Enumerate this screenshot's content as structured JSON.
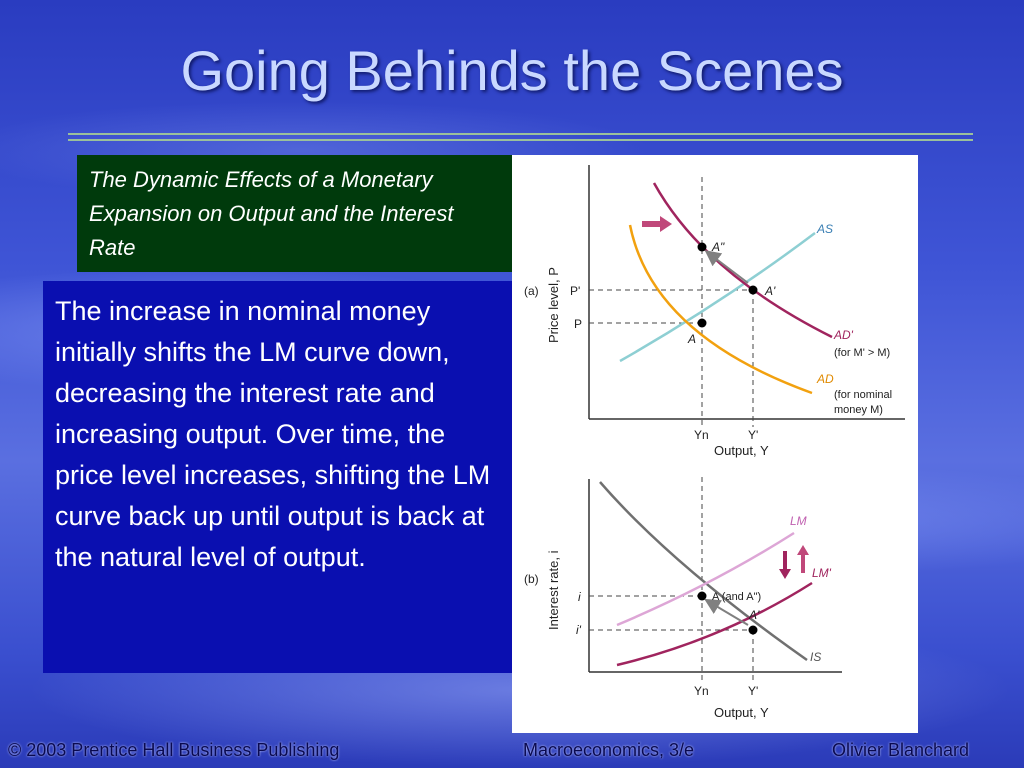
{
  "slide": {
    "title": "Going Behinds the Scenes",
    "caption": "The Dynamic Effects of a Monetary Expansion on Output and the Interest Rate",
    "body": "The increase in nominal money initially shifts the LM curve down, decreasing the interest rate and increasing output.  Over time, the price level increases, shifting the LM curve back up until output is back at the natural level of output."
  },
  "panel_a": {
    "tag": "(a)",
    "y_axis_label": "Price level, P",
    "x_axis_label": "Output, Y",
    "x_ticks": [
      "Yn",
      "Y'"
    ],
    "y_ticks": [
      "P'",
      "P"
    ],
    "curve_as": "AS",
    "curve_ad_prime": "AD'",
    "curve_ad_prime_note": "(for M' > M)",
    "curve_ad": "AD",
    "curve_ad_note_1": "(for nominal",
    "curve_ad_note_2": "money M)",
    "point_a": "A",
    "point_a_prime": "A'",
    "point_a_double": "A\""
  },
  "panel_b": {
    "tag": "(b)",
    "y_axis_label": "Interest rate, i",
    "x_axis_label": "Output, Y",
    "x_ticks": [
      "Yn",
      "Y'"
    ],
    "y_ticks": [
      "i",
      "i'"
    ],
    "curve_lm": "LM",
    "curve_lm_prime": "LM'",
    "curve_is": "IS",
    "point_a": "A (and A\")",
    "point_a_prime": "A'"
  },
  "footer": {
    "copyright": "© 2003 Prentice Hall Business Publishing",
    "book": "Macroeconomics, 3/e",
    "author": "Olivier Blanchard"
  },
  "colors": {
    "as_curve": "#8ecfd3",
    "ad_curve": "#f2a10f",
    "ad_prime_curve": "#a0245e",
    "lm_curve": "#dda6d6",
    "is_curve": "#707070",
    "shift_arrow": "#c0487a",
    "caption_bg": "#003a0c",
    "body_bg": "#0a0fb0"
  }
}
